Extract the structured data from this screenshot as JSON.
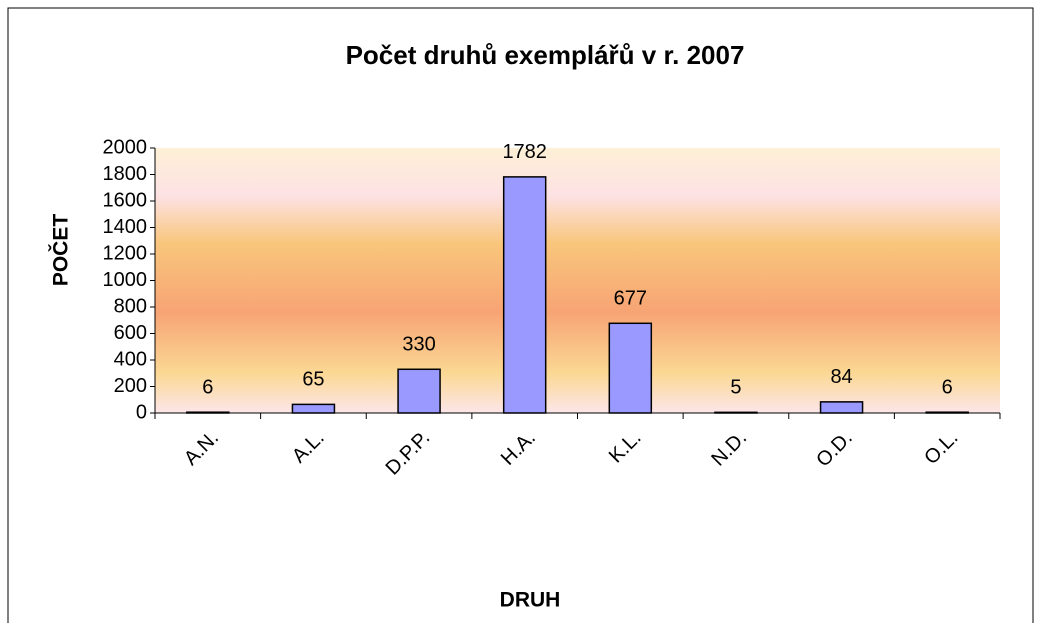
{
  "chart_data": {
    "type": "bar",
    "title": "Počet druhů exemplářů v r. 2007",
    "x_label": "DRUH",
    "y_label": "POČET",
    "categories": [
      "A.N.",
      "A.L.",
      "D.P.P.",
      "H.A.",
      "K.L.",
      "N.D.",
      "O.D.",
      "O.L."
    ],
    "values": [
      6,
      65,
      330,
      1782,
      677,
      5,
      84,
      6
    ],
    "color": "#9999ff",
    "ylim": [
      0,
      2000
    ],
    "yticks": [
      0,
      200,
      400,
      600,
      800,
      1000,
      1200,
      1400,
      1600,
      1800,
      2000
    ]
  }
}
